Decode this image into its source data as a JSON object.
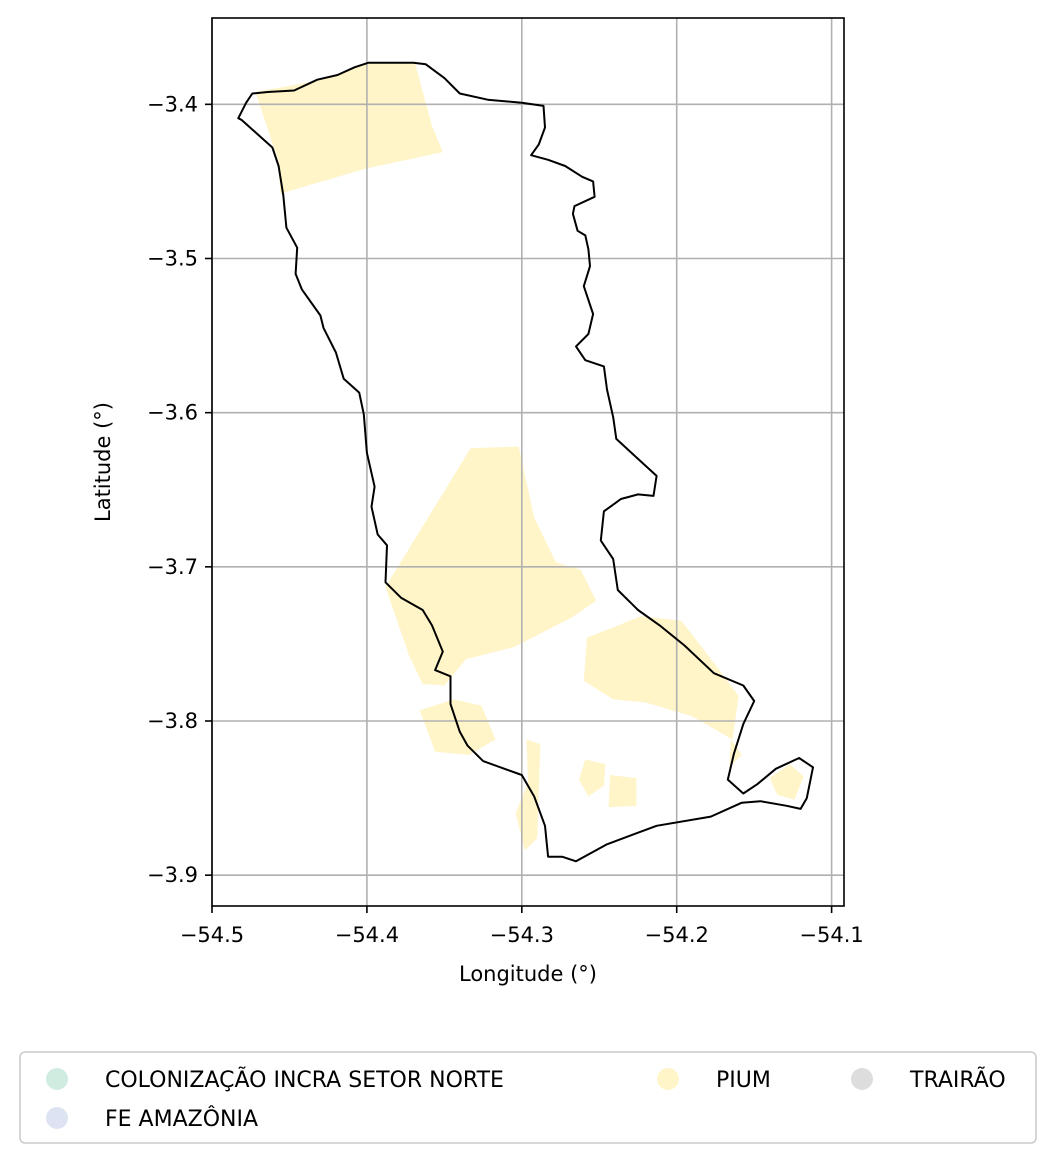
{
  "chart_data": {
    "type": "map",
    "xlabel": "Longitude (°)",
    "ylabel": "Latitude (°)",
    "xlim": [
      -54.5,
      -54.092
    ],
    "ylim": [
      -3.92,
      -3.344
    ],
    "xticks": [
      -54.5,
      -54.4,
      -54.3,
      -54.2,
      -54.1
    ],
    "xtick_labels": [
      "−54.5",
      "−54.4",
      "−54.3",
      "−54.2",
      "−54.1"
    ],
    "yticks": [
      -3.4,
      -3.5,
      -3.6,
      -3.7,
      -3.8,
      -3.9
    ],
    "ytick_labels": [
      "−3.4",
      "−3.5",
      "−3.6",
      "−3.7",
      "−3.8",
      "−3.9"
    ],
    "grid": true,
    "legend_position": "bottom",
    "legend": [
      {
        "label": "COLONIZAÇÃO INCRA SETOR NORTE",
        "color": "#d0ece0"
      },
      {
        "label": "PIUM",
        "color": "#fff5c9"
      },
      {
        "label": "TRAIRÃO",
        "color": "#dddddd"
      },
      {
        "label": "FE AMAZÔNIA",
        "color": "#dde3f2"
      }
    ],
    "boundary": [
      [
        -54.483,
        -3.409
      ],
      [
        -54.478,
        -3.399
      ],
      [
        -54.474,
        -3.393
      ],
      [
        -54.464,
        -3.392
      ],
      [
        -54.447,
        -3.391
      ],
      [
        -54.432,
        -3.384
      ],
      [
        -54.419,
        -3.381
      ],
      [
        -54.408,
        -3.376
      ],
      [
        -54.399,
        -3.373
      ],
      [
        -54.385,
        -3.373
      ],
      [
        -54.37,
        -3.373
      ],
      [
        -54.362,
        -3.374
      ],
      [
        -54.35,
        -3.383
      ],
      [
        -54.34,
        -3.393
      ],
      [
        -54.322,
        -3.397
      ],
      [
        -54.3,
        -3.399
      ],
      [
        -54.286,
        -3.401
      ],
      [
        -54.285,
        -3.415
      ],
      [
        -54.289,
        -3.426
      ],
      [
        -54.294,
        -3.433
      ],
      [
        -54.283,
        -3.436
      ],
      [
        -54.272,
        -3.44
      ],
      [
        -54.261,
        -3.447
      ],
      [
        -54.254,
        -3.45
      ],
      [
        -54.253,
        -3.46
      ],
      [
        -54.266,
        -3.466
      ],
      [
        -54.267,
        -3.471
      ],
      [
        -54.264,
        -3.482
      ],
      [
        -54.259,
        -3.485
      ],
      [
        -54.257,
        -3.494
      ],
      [
        -54.256,
        -3.505
      ],
      [
        -54.26,
        -3.518
      ],
      [
        -54.254,
        -3.536
      ],
      [
        -54.257,
        -3.549
      ],
      [
        -54.265,
        -3.557
      ],
      [
        -54.259,
        -3.566
      ],
      [
        -54.247,
        -3.57
      ],
      [
        -54.245,
        -3.585
      ],
      [
        -54.241,
        -3.603
      ],
      [
        -54.239,
        -3.617
      ],
      [
        -54.226,
        -3.629
      ],
      [
        -54.213,
        -3.641
      ],
      [
        -54.215,
        -3.654
      ],
      [
        -54.225,
        -3.653
      ],
      [
        -54.236,
        -3.656
      ],
      [
        -54.24,
        -3.659
      ],
      [
        -54.247,
        -3.664
      ],
      [
        -54.249,
        -3.683
      ],
      [
        -54.241,
        -3.695
      ],
      [
        -54.238,
        -3.715
      ],
      [
        -54.225,
        -3.728
      ],
      [
        -54.211,
        -3.738
      ],
      [
        -54.195,
        -3.751
      ],
      [
        -54.176,
        -3.769
      ],
      [
        -54.157,
        -3.777
      ],
      [
        -54.15,
        -3.787
      ],
      [
        -54.157,
        -3.802
      ],
      [
        -54.163,
        -3.821
      ],
      [
        -54.167,
        -3.838
      ],
      [
        -54.157,
        -3.847
      ],
      [
        -54.148,
        -3.841
      ],
      [
        -54.136,
        -3.831
      ],
      [
        -54.121,
        -3.824
      ],
      [
        -54.112,
        -3.83
      ],
      [
        -54.116,
        -3.85
      ],
      [
        -54.12,
        -3.857
      ],
      [
        -54.129,
        -3.855
      ],
      [
        -54.146,
        -3.852
      ],
      [
        -54.158,
        -3.853
      ],
      [
        -54.178,
        -3.862
      ],
      [
        -54.213,
        -3.868
      ],
      [
        -54.245,
        -3.88
      ],
      [
        -54.265,
        -3.891
      ],
      [
        -54.274,
        -3.888
      ],
      [
        -54.283,
        -3.888
      ],
      [
        -54.285,
        -3.868
      ],
      [
        -54.292,
        -3.849
      ],
      [
        -54.3,
        -3.835
      ],
      [
        -54.325,
        -3.826
      ],
      [
        -54.335,
        -3.816
      ],
      [
        -54.34,
        -3.807
      ],
      [
        -54.346,
        -3.789
      ],
      [
        -54.346,
        -3.771
      ],
      [
        -54.356,
        -3.767
      ],
      [
        -54.351,
        -3.755
      ],
      [
        -54.358,
        -3.738
      ],
      [
        -54.364,
        -3.728
      ],
      [
        -54.378,
        -3.72
      ],
      [
        -54.388,
        -3.71
      ],
      [
        -54.387,
        -3.686
      ],
      [
        -54.393,
        -3.679
      ],
      [
        -54.397,
        -3.661
      ],
      [
        -54.395,
        -3.648
      ],
      [
        -54.4,
        -3.626
      ],
      [
        -54.402,
        -3.601
      ],
      [
        -54.405,
        -3.587
      ],
      [
        -54.415,
        -3.578
      ],
      [
        -54.42,
        -3.561
      ],
      [
        -54.428,
        -3.545
      ],
      [
        -54.43,
        -3.537
      ],
      [
        -54.442,
        -3.52
      ],
      [
        -54.446,
        -3.51
      ],
      [
        -54.445,
        -3.493
      ],
      [
        -54.452,
        -3.48
      ],
      [
        -54.454,
        -3.459
      ],
      [
        -54.457,
        -3.44
      ],
      [
        -54.461,
        -3.428
      ],
      [
        -54.471,
        -3.419
      ],
      [
        -54.481,
        -3.41
      ]
    ],
    "pium_regions": [
      [
        [
          -54.472,
          -3.392
        ],
        [
          -54.429,
          -3.384
        ],
        [
          -54.399,
          -3.373
        ],
        [
          -54.369,
          -3.373
        ],
        [
          -54.358,
          -3.414
        ],
        [
          -54.351,
          -3.431
        ],
        [
          -54.402,
          -3.442
        ],
        [
          -54.456,
          -3.458
        ],
        [
          -54.457,
          -3.437
        ],
        [
          -54.465,
          -3.413
        ]
      ],
      [
        [
          -54.333,
          -3.623
        ],
        [
          -54.302,
          -3.622
        ],
        [
          -54.292,
          -3.668
        ],
        [
          -54.278,
          -3.697
        ],
        [
          -54.262,
          -3.702
        ],
        [
          -54.252,
          -3.722
        ],
        [
          -54.268,
          -3.733
        ],
        [
          -54.305,
          -3.752
        ],
        [
          -54.336,
          -3.76
        ],
        [
          -54.35,
          -3.777
        ],
        [
          -54.364,
          -3.776
        ],
        [
          -54.373,
          -3.757
        ],
        [
          -54.388,
          -3.713
        ]
      ],
      [
        [
          -54.258,
          -3.746
        ],
        [
          -54.223,
          -3.732
        ],
        [
          -54.197,
          -3.735
        ],
        [
          -54.174,
          -3.765
        ],
        [
          -54.16,
          -3.784
        ],
        [
          -54.164,
          -3.812
        ],
        [
          -54.19,
          -3.797
        ],
        [
          -54.22,
          -3.788
        ],
        [
          -54.241,
          -3.786
        ],
        [
          -54.26,
          -3.774
        ]
      ],
      [
        [
          -54.366,
          -3.793
        ],
        [
          -54.344,
          -3.786
        ],
        [
          -54.326,
          -3.79
        ],
        [
          -54.317,
          -3.812
        ],
        [
          -54.334,
          -3.822
        ],
        [
          -54.356,
          -3.82
        ]
      ],
      [
        [
          -54.297,
          -3.812
        ],
        [
          -54.288,
          -3.815
        ],
        [
          -54.29,
          -3.876
        ],
        [
          -54.298,
          -3.884
        ],
        [
          -54.304,
          -3.86
        ],
        [
          -54.296,
          -3.84
        ]
      ],
      [
        [
          -54.259,
          -3.825
        ],
        [
          -54.246,
          -3.828
        ],
        [
          -54.247,
          -3.842
        ],
        [
          -54.257,
          -3.849
        ],
        [
          -54.263,
          -3.838
        ]
      ],
      [
        [
          -54.243,
          -3.835
        ],
        [
          -54.226,
          -3.837
        ],
        [
          -54.226,
          -3.855
        ],
        [
          -54.244,
          -3.856
        ]
      ],
      [
        [
          -54.127,
          -3.828
        ],
        [
          -54.118,
          -3.836
        ],
        [
          -54.124,
          -3.851
        ],
        [
          -54.135,
          -3.848
        ],
        [
          -54.14,
          -3.837
        ]
      ],
      [
        [
          -54.165,
          -3.812
        ],
        [
          -54.158,
          -3.822
        ],
        [
          -54.166,
          -3.83
        ]
      ]
    ]
  }
}
